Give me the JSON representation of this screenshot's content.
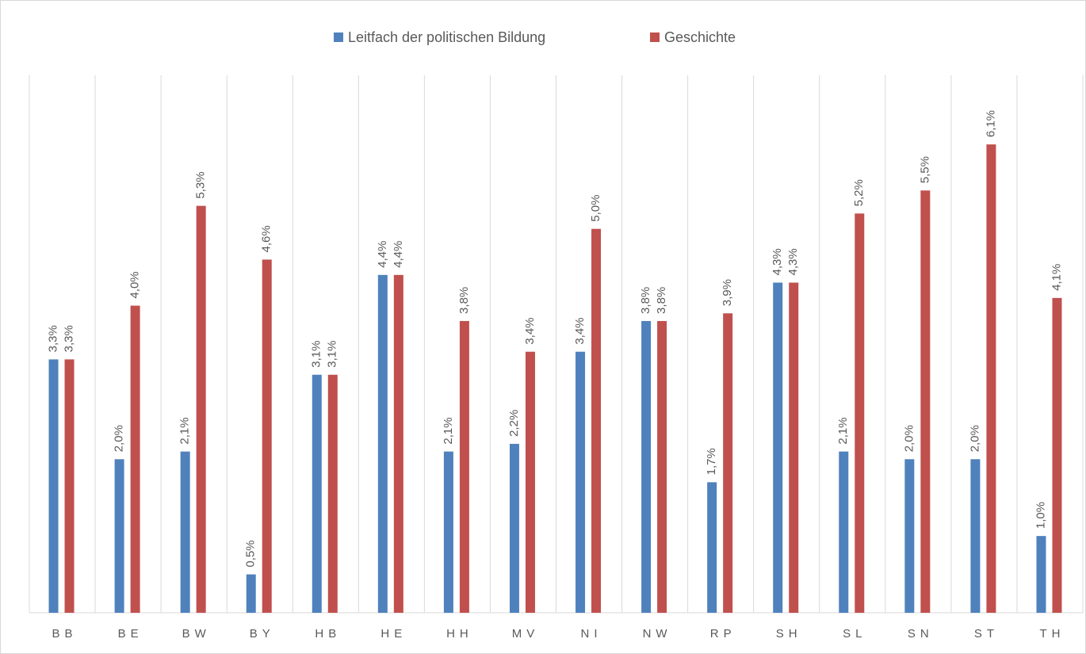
{
  "chart_data": {
    "type": "bar",
    "categories": [
      "BB",
      "BE",
      "BW",
      "BY",
      "HB",
      "HE",
      "HH",
      "MV",
      "NI",
      "NW",
      "RP",
      "SH",
      "SL",
      "SN",
      "ST",
      "TH"
    ],
    "series": [
      {
        "name": "Leitfach der politischen Bildung",
        "color": "#4f81bd",
        "values": [
          3.3,
          2.0,
          2.1,
          0.5,
          3.1,
          4.4,
          2.1,
          2.2,
          3.4,
          3.8,
          1.7,
          4.3,
          2.1,
          2.0,
          2.0,
          1.0
        ],
        "value_labels": [
          "3,3%",
          "2,0%",
          "2,1%",
          "0,5%",
          "3,1%",
          "4,4%",
          "2,1%",
          "2,2%",
          "3,4%",
          "3,8%",
          "1,7%",
          "4,3%",
          "2,1%",
          "2,0%",
          "2,0%",
          "1,0%"
        ]
      },
      {
        "name": "Geschichte",
        "color": "#c0504d",
        "values": [
          3.3,
          4.0,
          5.3,
          4.6,
          3.1,
          4.4,
          3.8,
          3.4,
          5.0,
          3.8,
          3.9,
          4.3,
          5.2,
          5.5,
          6.1,
          4.1
        ],
        "value_labels": [
          "3,3%",
          "4,0%",
          "5,3%",
          "4,6%",
          "3,1%",
          "4,4%",
          "3,8%",
          "3,4%",
          "5,0%",
          "3,8%",
          "3,9%",
          "4,3%",
          "5,2%",
          "5,5%",
          "6,1%",
          "4,1%"
        ]
      }
    ],
    "ylim": [
      0,
      7
    ],
    "legend": "top"
  }
}
